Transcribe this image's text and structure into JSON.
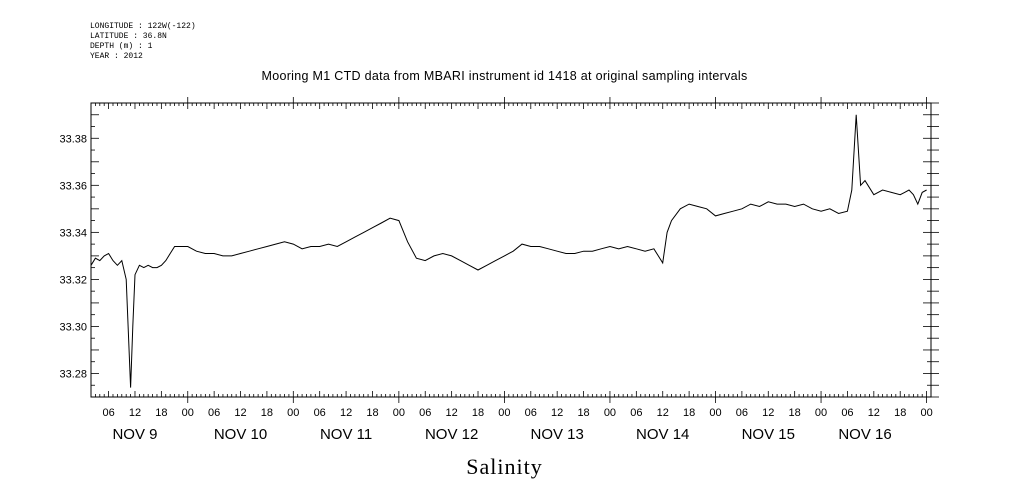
{
  "header": {
    "longitude": "LONGITUDE : 122W(-122)",
    "latitude": "LATITUDE : 36.8N",
    "depth": "DEPTH (m) : 1",
    "year": "YEAR : 2012"
  },
  "chart_data": {
    "type": "line",
    "title": "Mooring M1 CTD data from MBARI instrument id 1418 at original sampling intervals",
    "xlabel": "Salinity",
    "ylabel": "",
    "ylim": [
      33.27,
      33.395
    ],
    "xlim_hours": [
      2,
      193
    ],
    "yticks": [
      "33.28",
      "33.30",
      "33.32",
      "33.34",
      "33.36",
      "33.38"
    ],
    "xticks": [
      "06",
      "12",
      "18",
      "00",
      "06",
      "12",
      "18",
      "00",
      "06",
      "12",
      "18",
      "00",
      "06",
      "12",
      "18",
      "00",
      "06",
      "12",
      "18",
      "00",
      "06",
      "12",
      "18",
      "00",
      "06",
      "12",
      "18",
      "00",
      "06",
      "12",
      "18",
      "00"
    ],
    "day_labels": [
      "NOV  9",
      "NOV 10",
      "NOV 11",
      "NOV 12",
      "NOV 13",
      "NOV 14",
      "NOV 15",
      "NOV 16"
    ],
    "x_units": "hours since 2012-11-09 00:00",
    "series": [
      {
        "x": [
          2,
          3,
          4,
          5,
          6,
          7,
          8,
          9,
          10,
          11,
          11.5,
          12,
          13,
          14,
          15,
          16,
          17,
          18,
          19,
          20,
          21,
          22,
          24,
          26,
          28,
          30,
          32,
          34,
          36,
          38,
          40,
          42,
          44,
          46,
          48,
          50,
          52,
          54,
          56,
          58,
          60,
          62,
          64,
          66,
          68,
          70,
          72,
          74,
          76,
          78,
          80,
          82,
          84,
          86,
          88,
          90,
          92,
          94,
          96,
          98,
          100,
          102,
          104,
          106,
          108,
          110,
          112,
          114,
          116,
          118,
          120,
          122,
          124,
          126,
          128,
          130,
          131,
          132,
          133,
          134,
          136,
          138,
          140,
          142,
          144,
          146,
          148,
          150,
          152,
          154,
          156,
          158,
          160,
          162,
          164,
          166,
          168,
          170,
          172,
          174,
          175,
          176,
          177,
          178,
          180,
          182,
          184,
          186,
          187,
          188,
          189,
          190,
          191,
          192
        ],
        "y": [
          33.326,
          33.329,
          33.328,
          33.33,
          33.331,
          33.328,
          33.326,
          33.328,
          33.32,
          33.274,
          33.3,
          33.322,
          33.326,
          33.325,
          33.326,
          33.325,
          33.325,
          33.326,
          33.328,
          33.331,
          33.334,
          33.334,
          33.334,
          33.332,
          33.331,
          33.331,
          33.33,
          33.33,
          33.331,
          33.332,
          33.333,
          33.334,
          33.335,
          33.336,
          33.335,
          33.333,
          33.334,
          33.334,
          33.335,
          33.334,
          33.336,
          33.338,
          33.34,
          33.342,
          33.344,
          33.346,
          33.345,
          33.336,
          33.329,
          33.328,
          33.33,
          33.331,
          33.33,
          33.328,
          33.326,
          33.324,
          33.326,
          33.328,
          33.33,
          33.332,
          33.335,
          33.334,
          33.334,
          33.333,
          33.332,
          33.331,
          33.331,
          33.332,
          33.332,
          33.333,
          33.334,
          33.333,
          33.334,
          33.333,
          33.332,
          33.333,
          33.33,
          33.327,
          33.34,
          33.345,
          33.35,
          33.352,
          33.351,
          33.35,
          33.347,
          33.348,
          33.349,
          33.35,
          33.352,
          33.351,
          33.353,
          33.352,
          33.352,
          33.351,
          33.352,
          33.35,
          33.349,
          33.35,
          33.348,
          33.349,
          33.358,
          33.39,
          33.36,
          33.362,
          33.356,
          33.358,
          33.357,
          33.356,
          33.357,
          33.358,
          33.356,
          33.352,
          33.357,
          33.358
        ],
        "color": "#000000"
      }
    ],
    "grid": false,
    "legend": "none"
  }
}
